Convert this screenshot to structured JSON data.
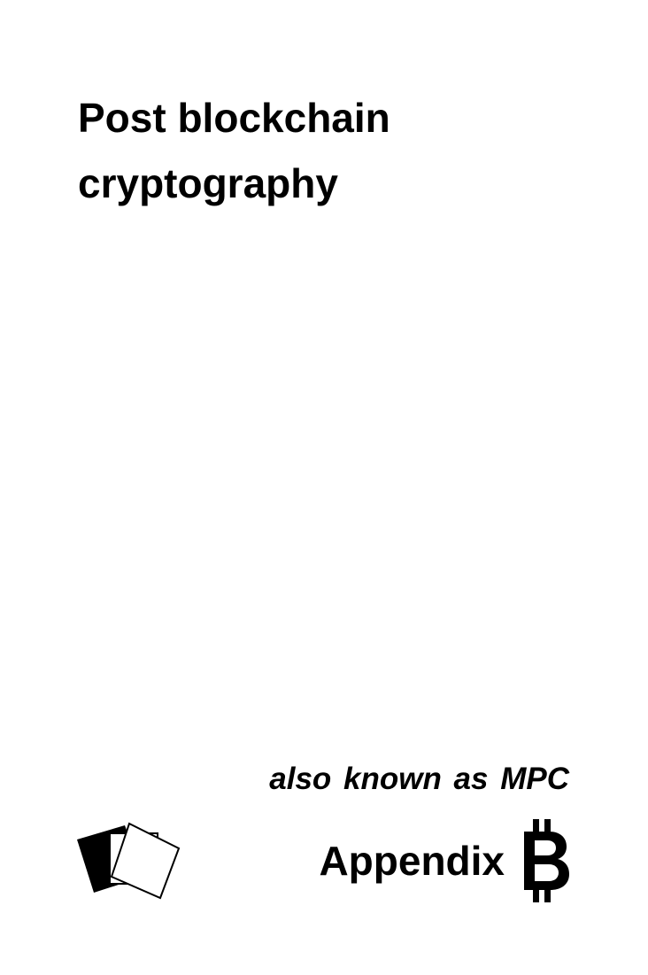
{
  "title": {
    "line1": "Post blockchain",
    "line2": "cryptography"
  },
  "subtitle": "also known as MPC",
  "appendix": {
    "label": "Appendix",
    "letter": "B",
    "letter_style": "bitcoin-style B with vertical strokes"
  },
  "logo": {
    "icon": "overlapping-squares-icon"
  },
  "colors": {
    "text": "#000000",
    "background": "#ffffff"
  }
}
